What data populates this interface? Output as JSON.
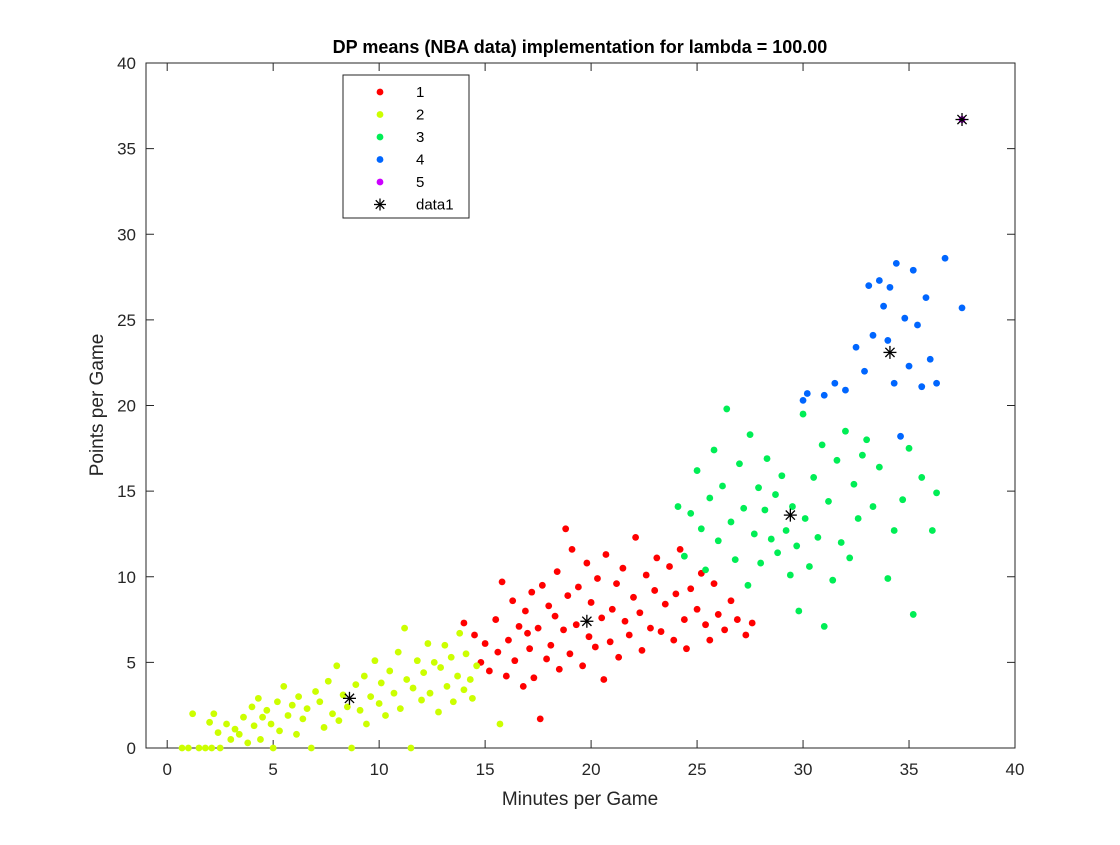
{
  "chart_data": {
    "type": "scatter",
    "title": "DP means (NBA data) implementation for lambda = 100.00",
    "xlabel": "Minutes per Game",
    "ylabel": "Points per Game",
    "xlim": [
      -1,
      40
    ],
    "ylim": [
      0,
      40
    ],
    "xticks": [
      0,
      5,
      10,
      15,
      20,
      25,
      30,
      35,
      40
    ],
    "yticks": [
      0,
      5,
      10,
      15,
      20,
      25,
      30,
      35,
      40
    ],
    "grid": false,
    "legend_position": "top-left (inside axes)",
    "series": [
      {
        "name": "1",
        "marker": "filled-circle",
        "color": "#ff0000",
        "points": [
          [
            14,
            7.3
          ],
          [
            14.5,
            6.6
          ],
          [
            14.8,
            5.0
          ],
          [
            15.0,
            6.1
          ],
          [
            15.2,
            4.5
          ],
          [
            15.5,
            7.5
          ],
          [
            15.6,
            5.6
          ],
          [
            15.8,
            9.7
          ],
          [
            16.0,
            4.2
          ],
          [
            16.1,
            6.3
          ],
          [
            16.3,
            8.6
          ],
          [
            16.4,
            5.1
          ],
          [
            16.6,
            7.1
          ],
          [
            16.8,
            3.6
          ],
          [
            16.9,
            8.0
          ],
          [
            17.0,
            6.7
          ],
          [
            17.1,
            5.8
          ],
          [
            17.2,
            9.1
          ],
          [
            17.3,
            4.1
          ],
          [
            17.5,
            7.0
          ],
          [
            17.6,
            1.7
          ],
          [
            17.7,
            9.5
          ],
          [
            17.9,
            5.2
          ],
          [
            18.0,
            8.3
          ],
          [
            18.1,
            6.0
          ],
          [
            18.3,
            7.7
          ],
          [
            18.4,
            10.3
          ],
          [
            18.5,
            4.6
          ],
          [
            18.7,
            6.9
          ],
          [
            18.8,
            12.8
          ],
          [
            18.9,
            8.9
          ],
          [
            19.0,
            5.5
          ],
          [
            19.1,
            11.6
          ],
          [
            19.3,
            7.2
          ],
          [
            19.4,
            9.4
          ],
          [
            19.6,
            4.8
          ],
          [
            19.8,
            10.8
          ],
          [
            19.9,
            6.5
          ],
          [
            20.0,
            8.5
          ],
          [
            20.2,
            5.9
          ],
          [
            20.3,
            9.9
          ],
          [
            20.5,
            7.6
          ],
          [
            20.6,
            4.0
          ],
          [
            20.7,
            11.3
          ],
          [
            20.9,
            6.2
          ],
          [
            21.0,
            8.1
          ],
          [
            21.2,
            9.6
          ],
          [
            21.3,
            5.3
          ],
          [
            21.5,
            10.5
          ],
          [
            21.6,
            7.4
          ],
          [
            21.8,
            6.6
          ],
          [
            22.0,
            8.8
          ],
          [
            22.1,
            12.3
          ],
          [
            22.3,
            7.9
          ],
          [
            22.4,
            5.7
          ],
          [
            22.6,
            10.1
          ],
          [
            22.8,
            7.0
          ],
          [
            23.0,
            9.2
          ],
          [
            23.1,
            11.1
          ],
          [
            23.3,
            6.8
          ],
          [
            23.5,
            8.4
          ],
          [
            23.7,
            10.6
          ],
          [
            23.9,
            6.3
          ],
          [
            24.0,
            9.0
          ],
          [
            24.2,
            11.6
          ],
          [
            24.4,
            7.5
          ],
          [
            24.5,
            5.8
          ],
          [
            24.7,
            9.3
          ],
          [
            25.0,
            8.1
          ],
          [
            25.2,
            10.2
          ],
          [
            25.4,
            7.2
          ],
          [
            25.6,
            6.3
          ],
          [
            25.8,
            9.6
          ],
          [
            26.0,
            7.8
          ],
          [
            26.3,
            6.9
          ],
          [
            26.6,
            8.6
          ],
          [
            26.9,
            7.5
          ],
          [
            27.3,
            6.6
          ],
          [
            27.6,
            7.3
          ]
        ]
      },
      {
        "name": "2",
        "marker": "filled-circle",
        "color": "#ccff00",
        "points": [
          [
            0.7,
            0
          ],
          [
            1.0,
            0
          ],
          [
            1.2,
            2.0
          ],
          [
            1.5,
            0
          ],
          [
            1.8,
            0
          ],
          [
            2.0,
            1.5
          ],
          [
            2.1,
            0
          ],
          [
            2.2,
            2.0
          ],
          [
            2.4,
            0.9
          ],
          [
            2.5,
            0
          ],
          [
            2.8,
            1.4
          ],
          [
            3.0,
            0.5
          ],
          [
            3.2,
            1.1
          ],
          [
            3.4,
            0.8
          ],
          [
            3.6,
            1.8
          ],
          [
            3.8,
            0.3
          ],
          [
            4.0,
            2.4
          ],
          [
            4.1,
            1.3
          ],
          [
            4.3,
            2.9
          ],
          [
            4.4,
            0.5
          ],
          [
            4.5,
            1.8
          ],
          [
            4.7,
            2.2
          ],
          [
            4.9,
            1.4
          ],
          [
            5.0,
            0
          ],
          [
            5.2,
            2.7
          ],
          [
            5.3,
            1.0
          ],
          [
            5.5,
            3.6
          ],
          [
            5.7,
            1.9
          ],
          [
            5.9,
            2.5
          ],
          [
            6.1,
            0.8
          ],
          [
            6.2,
            3.0
          ],
          [
            6.4,
            1.7
          ],
          [
            6.6,
            2.3
          ],
          [
            6.8,
            0
          ],
          [
            7.0,
            3.3
          ],
          [
            7.2,
            2.7
          ],
          [
            7.4,
            1.2
          ],
          [
            7.6,
            3.9
          ],
          [
            7.8,
            2.0
          ],
          [
            8.0,
            4.8
          ],
          [
            8.1,
            1.6
          ],
          [
            8.3,
            3.1
          ],
          [
            8.5,
            2.4
          ],
          [
            8.7,
            0
          ],
          [
            8.9,
            3.7
          ],
          [
            9.1,
            2.2
          ],
          [
            9.3,
            4.2
          ],
          [
            9.4,
            1.4
          ],
          [
            9.6,
            3.0
          ],
          [
            9.8,
            5.1
          ],
          [
            10.0,
            2.6
          ],
          [
            10.1,
            3.8
          ],
          [
            10.3,
            1.9
          ],
          [
            10.5,
            4.5
          ],
          [
            10.7,
            3.2
          ],
          [
            10.9,
            5.6
          ],
          [
            11.0,
            2.3
          ],
          [
            11.2,
            7.0
          ],
          [
            11.3,
            4.0
          ],
          [
            11.5,
            0
          ],
          [
            11.6,
            3.5
          ],
          [
            11.8,
            5.1
          ],
          [
            12.0,
            2.8
          ],
          [
            12.1,
            4.4
          ],
          [
            12.3,
            6.1
          ],
          [
            12.4,
            3.2
          ],
          [
            12.6,
            5.0
          ],
          [
            12.8,
            2.1
          ],
          [
            12.9,
            4.7
          ],
          [
            13.1,
            6.0
          ],
          [
            13.2,
            3.6
          ],
          [
            13.4,
            5.3
          ],
          [
            13.5,
            2.7
          ],
          [
            13.7,
            4.2
          ],
          [
            13.8,
            6.7
          ],
          [
            14.0,
            3.4
          ],
          [
            14.1,
            5.5
          ],
          [
            14.3,
            4.0
          ],
          [
            14.4,
            2.9
          ],
          [
            14.6,
            4.8
          ],
          [
            15.7,
            1.4
          ]
        ]
      },
      {
        "name": "3",
        "marker": "filled-circle",
        "color": "#00ee55",
        "points": [
          [
            24.1,
            14.1
          ],
          [
            24.4,
            11.2
          ],
          [
            24.7,
            13.7
          ],
          [
            25.0,
            16.2
          ],
          [
            25.2,
            12.8
          ],
          [
            25.4,
            10.4
          ],
          [
            25.6,
            14.6
          ],
          [
            25.8,
            17.4
          ],
          [
            26.0,
            12.1
          ],
          [
            26.2,
            15.3
          ],
          [
            26.4,
            19.8
          ],
          [
            26.6,
            13.2
          ],
          [
            26.8,
            11.0
          ],
          [
            27.0,
            16.6
          ],
          [
            27.2,
            14.0
          ],
          [
            27.4,
            9.5
          ],
          [
            27.5,
            18.3
          ],
          [
            27.7,
            12.5
          ],
          [
            27.9,
            15.2
          ],
          [
            28.0,
            10.8
          ],
          [
            28.2,
            13.9
          ],
          [
            28.3,
            16.9
          ],
          [
            28.5,
            12.2
          ],
          [
            28.7,
            14.8
          ],
          [
            28.8,
            11.4
          ],
          [
            29.0,
            15.9
          ],
          [
            29.2,
            12.7
          ],
          [
            29.4,
            10.1
          ],
          [
            29.5,
            14.1
          ],
          [
            29.7,
            11.8
          ],
          [
            29.8,
            8.0
          ],
          [
            30.0,
            19.5
          ],
          [
            30.1,
            13.4
          ],
          [
            30.3,
            10.6
          ],
          [
            30.5,
            15.8
          ],
          [
            30.7,
            12.3
          ],
          [
            30.9,
            17.7
          ],
          [
            31.0,
            7.1
          ],
          [
            31.2,
            14.4
          ],
          [
            31.4,
            9.8
          ],
          [
            31.6,
            16.8
          ],
          [
            31.8,
            12.0
          ],
          [
            32.0,
            18.5
          ],
          [
            32.2,
            11.1
          ],
          [
            32.4,
            15.4
          ],
          [
            32.6,
            13.4
          ],
          [
            32.8,
            17.1
          ],
          [
            33.0,
            18.0
          ],
          [
            33.3,
            14.1
          ],
          [
            33.6,
            16.4
          ],
          [
            34.0,
            9.9
          ],
          [
            34.3,
            12.7
          ],
          [
            34.7,
            14.5
          ],
          [
            35.0,
            17.5
          ],
          [
            35.2,
            7.8
          ],
          [
            35.6,
            15.8
          ],
          [
            36.1,
            12.7
          ],
          [
            36.3,
            14.9
          ]
        ]
      },
      {
        "name": "4",
        "marker": "filled-circle",
        "color": "#0066ff",
        "points": [
          [
            30.0,
            20.3
          ],
          [
            30.2,
            20.7
          ],
          [
            31.0,
            20.6
          ],
          [
            31.5,
            21.3
          ],
          [
            32.0,
            20.9
          ],
          [
            32.5,
            23.4
          ],
          [
            32.9,
            22.0
          ],
          [
            33.1,
            27.0
          ],
          [
            33.3,
            24.1
          ],
          [
            33.6,
            27.3
          ],
          [
            33.8,
            25.8
          ],
          [
            34.0,
            23.8
          ],
          [
            34.1,
            26.9
          ],
          [
            34.3,
            21.3
          ],
          [
            34.4,
            28.3
          ],
          [
            34.6,
            18.2
          ],
          [
            34.8,
            25.1
          ],
          [
            35.0,
            22.3
          ],
          [
            35.2,
            27.9
          ],
          [
            35.4,
            24.7
          ],
          [
            35.6,
            21.1
          ],
          [
            35.8,
            26.3
          ],
          [
            36.0,
            22.7
          ],
          [
            36.3,
            21.3
          ],
          [
            36.7,
            28.6
          ],
          [
            37.5,
            25.7
          ]
        ]
      },
      {
        "name": "5",
        "marker": "filled-circle",
        "color": "#cc00ff",
        "points": [
          [
            37.5,
            36.7
          ]
        ]
      },
      {
        "name": "data1",
        "marker": "asterisk",
        "color": "#000000",
        "points": [
          [
            8.6,
            2.9
          ],
          [
            19.8,
            7.4
          ],
          [
            29.4,
            13.6
          ],
          [
            34.1,
            23.1
          ],
          [
            37.5,
            36.7
          ]
        ]
      }
    ]
  }
}
